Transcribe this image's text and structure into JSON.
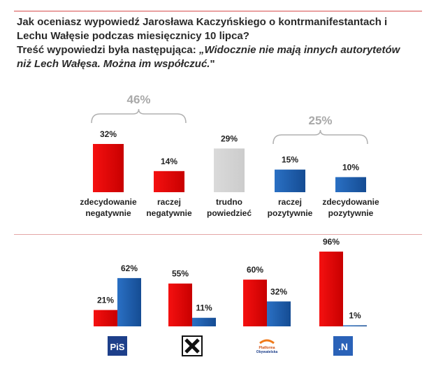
{
  "question": {
    "line1": "Jak oceniasz wypowiedź Jarosława Kaczyńskiego o kontrmanifestantach i",
    "line2": "Lechu Wałęsie podczas miesięcznicy 10 lipca?",
    "line3_prefix": "Treść wypowiedzi była następująca: ",
    "quote_line1": "„Widocznie nie mają innych autorytetów",
    "quote_line2": "niż Lech Wałęsa. Można im współczuć.",
    "quote_end": "\""
  },
  "colors": {
    "red": "#e00000",
    "gray": "#d4d4d4",
    "blue": "#1c5aa8",
    "bracket": "#b0b0b0"
  },
  "chart_data": [
    {
      "type": "bar",
      "categories": [
        [
          "zdecydowanie",
          "negatywnie"
        ],
        [
          "raczej",
          "negatywnie"
        ],
        [
          "trudno",
          "powiedzieć"
        ],
        [
          "raczej",
          "pozytywnie"
        ],
        [
          "zdecydowanie",
          "pozytywnie"
        ]
      ],
      "values": [
        32,
        14,
        29,
        15,
        10
      ],
      "value_labels": [
        "32%",
        "14%",
        "29%",
        "15%",
        "10%"
      ],
      "bar_colors": [
        "red",
        "red",
        "gray",
        "blue",
        "blue"
      ],
      "groups": [
        {
          "label": "46%",
          "from": 0,
          "to": 1
        },
        {
          "label": "25%",
          "from": 3,
          "to": 4
        }
      ]
    },
    {
      "type": "bar",
      "categories": [
        "PiS",
        "Kukiz'15",
        "Platforma Obywatelska",
        ".N"
      ],
      "series": [
        {
          "values": [
            21,
            55,
            60,
            96
          ],
          "labels": [
            "21%",
            "55%",
            "60%",
            "96%"
          ],
          "color": "red"
        },
        {
          "values": [
            62,
            11,
            32,
            1
          ],
          "labels": [
            "62%",
            "11%",
            "32%",
            "1%"
          ],
          "color": "blue"
        }
      ],
      "logos": [
        {
          "text": "PiS",
          "icon": "pis-logo"
        },
        {
          "text": "",
          "icon": "kukiz-logo"
        },
        {
          "text": "Platforma Obywatelska",
          "icon": "po-logo"
        },
        {
          "text": ".N",
          "icon": "nowoczesna-logo"
        }
      ]
    }
  ]
}
